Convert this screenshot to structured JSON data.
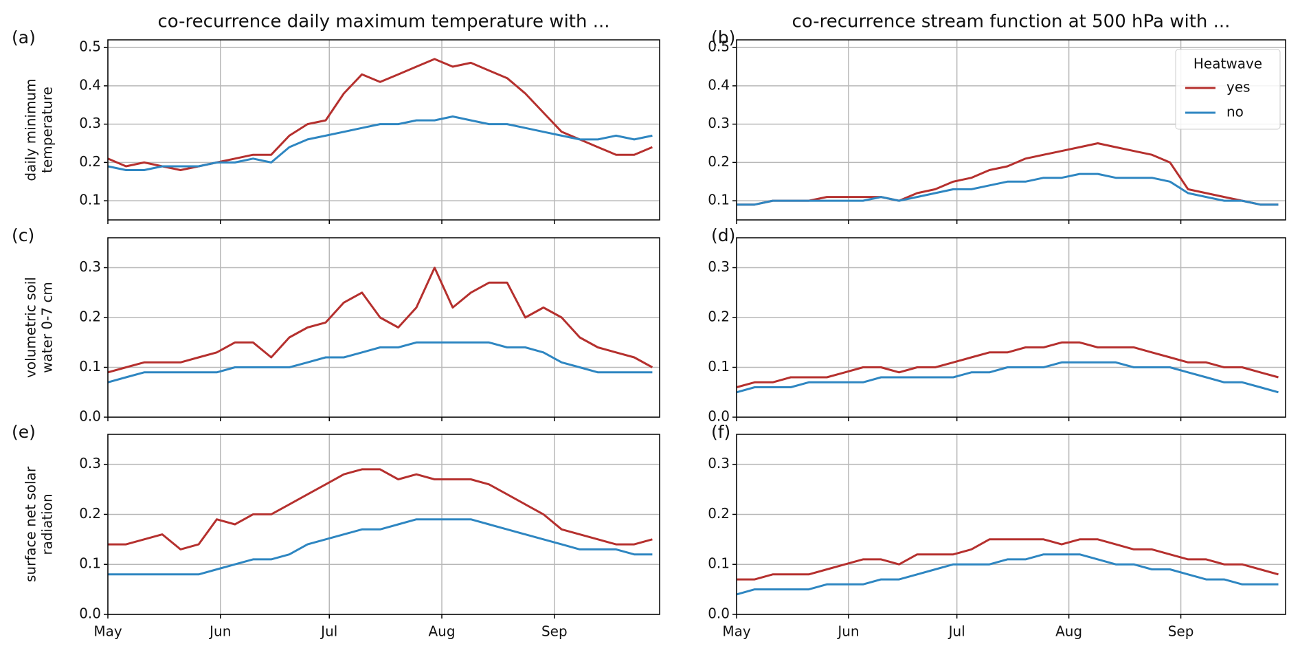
{
  "chart_data": [
    {
      "type": "line",
      "panel_label": "(a)",
      "title": "co-recurrence daily maximum temperature with ...",
      "ylabel": [
        "daily minimum",
        "temperature"
      ],
      "x": [
        0,
        5,
        10,
        15,
        20,
        25,
        30,
        35,
        40,
        45,
        50,
        55,
        60,
        65,
        70,
        75,
        80,
        85,
        90,
        95,
        100,
        105,
        110,
        115,
        120,
        125,
        130,
        135,
        140,
        145,
        150
      ],
      "xlim": [
        0,
        152
      ],
      "xticks": [
        0,
        31,
        61,
        92,
        123
      ],
      "ylim": [
        0.05,
        0.52
      ],
      "yticks": [
        0.1,
        0.2,
        0.3,
        0.4,
        0.5
      ],
      "grid": true,
      "series": [
        {
          "color": "#b5302e",
          "values": [
            0.21,
            0.19,
            0.2,
            0.19,
            0.18,
            0.19,
            0.2,
            0.21,
            0.22,
            0.22,
            0.27,
            0.3,
            0.31,
            0.38,
            0.43,
            0.41,
            0.43,
            0.45,
            0.47,
            0.45,
            0.46,
            0.44,
            0.42,
            0.38,
            0.33,
            0.28,
            0.26,
            0.24,
            0.22,
            0.22,
            0.24
          ]
        },
        {
          "color": "#2e86c1",
          "values": [
            0.19,
            0.18,
            0.18,
            0.19,
            0.19,
            0.19,
            0.2,
            0.2,
            0.21,
            0.2,
            0.24,
            0.26,
            0.27,
            0.28,
            0.29,
            0.3,
            0.3,
            0.31,
            0.31,
            0.32,
            0.31,
            0.3,
            0.3,
            0.29,
            0.28,
            0.27,
            0.26,
            0.26,
            0.27,
            0.26,
            0.27
          ]
        }
      ]
    },
    {
      "type": "line",
      "panel_label": "(b)",
      "title": "co-recurrence stream function at 500 hPa with ...",
      "legend_title": "Heatwave",
      "legend": "upper right",
      "x": [
        0,
        5,
        10,
        15,
        20,
        25,
        30,
        35,
        40,
        45,
        50,
        55,
        60,
        65,
        70,
        75,
        80,
        85,
        90,
        95,
        100,
        105,
        110,
        115,
        120,
        125,
        130,
        135,
        140,
        145,
        150
      ],
      "xlim": [
        0,
        152
      ],
      "xticks": [
        0,
        31,
        61,
        92,
        123
      ],
      "ylim": [
        0.05,
        0.52
      ],
      "yticks": [
        0.1,
        0.2,
        0.3,
        0.4,
        0.5
      ],
      "grid": true,
      "series": [
        {
          "name": "yes",
          "color": "#b5302e",
          "values": [
            0.09,
            0.09,
            0.1,
            0.1,
            0.1,
            0.11,
            0.11,
            0.11,
            0.11,
            0.1,
            0.12,
            0.13,
            0.15,
            0.16,
            0.18,
            0.19,
            0.21,
            0.22,
            0.23,
            0.24,
            0.25,
            0.24,
            0.23,
            0.22,
            0.2,
            0.13,
            0.12,
            0.11,
            0.1,
            0.09,
            0.09
          ]
        },
        {
          "name": "no",
          "color": "#2e86c1",
          "values": [
            0.09,
            0.09,
            0.1,
            0.1,
            0.1,
            0.1,
            0.1,
            0.1,
            0.11,
            0.1,
            0.11,
            0.12,
            0.13,
            0.13,
            0.14,
            0.15,
            0.15,
            0.16,
            0.16,
            0.17,
            0.17,
            0.16,
            0.16,
            0.16,
            0.15,
            0.12,
            0.11,
            0.1,
            0.1,
            0.09,
            0.09
          ]
        }
      ]
    },
    {
      "type": "line",
      "panel_label": "(c)",
      "ylabel": [
        "volumetric soil",
        "water 0-7 cm"
      ],
      "x": [
        0,
        5,
        10,
        15,
        20,
        25,
        30,
        35,
        40,
        45,
        50,
        55,
        60,
        65,
        70,
        75,
        80,
        85,
        90,
        95,
        100,
        105,
        110,
        115,
        120,
        125,
        130,
        135,
        140,
        145,
        150
      ],
      "xlim": [
        0,
        152
      ],
      "xticks": [
        0,
        31,
        61,
        92,
        123
      ],
      "ylim": [
        0,
        0.36
      ],
      "yticks": [
        {
          "value": 0,
          "label": "0.0"
        },
        0.1,
        0.2,
        0.3
      ],
      "grid": true,
      "series": [
        {
          "color": "#b5302e",
          "values": [
            0.09,
            0.1,
            0.11,
            0.11,
            0.11,
            0.12,
            0.13,
            0.15,
            0.15,
            0.12,
            0.16,
            0.18,
            0.19,
            0.23,
            0.25,
            0.2,
            0.18,
            0.22,
            0.3,
            0.22,
            0.25,
            0.27,
            0.27,
            0.2,
            0.22,
            0.2,
            0.16,
            0.14,
            0.13,
            0.12,
            0.1
          ]
        },
        {
          "color": "#2e86c1",
          "values": [
            0.07,
            0.08,
            0.09,
            0.09,
            0.09,
            0.09,
            0.09,
            0.1,
            0.1,
            0.1,
            0.1,
            0.11,
            0.12,
            0.12,
            0.13,
            0.14,
            0.14,
            0.15,
            0.15,
            0.15,
            0.15,
            0.15,
            0.14,
            0.14,
            0.13,
            0.11,
            0.1,
            0.09,
            0.09,
            0.09,
            0.09
          ]
        }
      ]
    },
    {
      "type": "line",
      "panel_label": "(d)",
      "x": [
        0,
        5,
        10,
        15,
        20,
        25,
        30,
        35,
        40,
        45,
        50,
        55,
        60,
        65,
        70,
        75,
        80,
        85,
        90,
        95,
        100,
        105,
        110,
        115,
        120,
        125,
        130,
        135,
        140,
        145,
        150
      ],
      "xlim": [
        0,
        152
      ],
      "xticks": [
        0,
        31,
        61,
        92,
        123
      ],
      "ylim": [
        0,
        0.36
      ],
      "yticks": [
        {
          "value": 0,
          "label": "0.0"
        },
        0.1,
        0.2,
        0.3
      ],
      "grid": true,
      "series": [
        {
          "color": "#b5302e",
          "values": [
            0.06,
            0.07,
            0.07,
            0.08,
            0.08,
            0.08,
            0.09,
            0.1,
            0.1,
            0.09,
            0.1,
            0.1,
            0.11,
            0.12,
            0.13,
            0.13,
            0.14,
            0.14,
            0.15,
            0.15,
            0.14,
            0.14,
            0.14,
            0.13,
            0.12,
            0.11,
            0.11,
            0.1,
            0.1,
            0.09,
            0.08
          ]
        },
        {
          "color": "#2e86c1",
          "values": [
            0.05,
            0.06,
            0.06,
            0.06,
            0.07,
            0.07,
            0.07,
            0.07,
            0.08,
            0.08,
            0.08,
            0.08,
            0.08,
            0.09,
            0.09,
            0.1,
            0.1,
            0.1,
            0.11,
            0.11,
            0.11,
            0.11,
            0.1,
            0.1,
            0.1,
            0.09,
            0.08,
            0.07,
            0.07,
            0.06,
            0.05
          ]
        }
      ]
    },
    {
      "type": "line",
      "panel_label": "(e)",
      "ylabel": [
        "surface net solar",
        "radiation"
      ],
      "x": [
        0,
        5,
        10,
        15,
        20,
        25,
        30,
        35,
        40,
        45,
        50,
        55,
        60,
        65,
        70,
        75,
        80,
        85,
        90,
        95,
        100,
        105,
        110,
        115,
        120,
        125,
        130,
        135,
        140,
        145,
        150
      ],
      "xlim": [
        0,
        152
      ],
      "xticks": [
        {
          "value": 0,
          "label": "May"
        },
        {
          "value": 31,
          "label": "Jun"
        },
        {
          "value": 61,
          "label": "Jul"
        },
        {
          "value": 92,
          "label": "Aug"
        },
        {
          "value": 123,
          "label": "Sep"
        }
      ],
      "ylim": [
        0,
        0.36
      ],
      "yticks": [
        {
          "value": 0,
          "label": "0.0"
        },
        0.1,
        0.2,
        0.3
      ],
      "grid": true,
      "series": [
        {
          "color": "#b5302e",
          "values": [
            0.14,
            0.14,
            0.15,
            0.16,
            0.13,
            0.14,
            0.19,
            0.18,
            0.2,
            0.2,
            0.22,
            0.24,
            0.26,
            0.28,
            0.29,
            0.29,
            0.27,
            0.28,
            0.27,
            0.27,
            0.27,
            0.26,
            0.24,
            0.22,
            0.2,
            0.17,
            0.16,
            0.15,
            0.14,
            0.14,
            0.15
          ]
        },
        {
          "color": "#2e86c1",
          "values": [
            0.08,
            0.08,
            0.08,
            0.08,
            0.08,
            0.08,
            0.09,
            0.1,
            0.11,
            0.11,
            0.12,
            0.14,
            0.15,
            0.16,
            0.17,
            0.17,
            0.18,
            0.19,
            0.19,
            0.19,
            0.19,
            0.18,
            0.17,
            0.16,
            0.15,
            0.14,
            0.13,
            0.13,
            0.13,
            0.12,
            0.12
          ]
        }
      ]
    },
    {
      "type": "line",
      "panel_label": "(f)",
      "x": [
        0,
        5,
        10,
        15,
        20,
        25,
        30,
        35,
        40,
        45,
        50,
        55,
        60,
        65,
        70,
        75,
        80,
        85,
        90,
        95,
        100,
        105,
        110,
        115,
        120,
        125,
        130,
        135,
        140,
        145,
        150
      ],
      "xlim": [
        0,
        152
      ],
      "xticks": [
        {
          "value": 0,
          "label": "May"
        },
        {
          "value": 31,
          "label": "Jun"
        },
        {
          "value": 61,
          "label": "Jul"
        },
        {
          "value": 92,
          "label": "Aug"
        },
        {
          "value": 123,
          "label": "Sep"
        }
      ],
      "ylim": [
        0,
        0.36
      ],
      "yticks": [
        {
          "value": 0,
          "label": "0.0"
        },
        0.1,
        0.2,
        0.3
      ],
      "grid": true,
      "series": [
        {
          "color": "#b5302e",
          "values": [
            0.07,
            0.07,
            0.08,
            0.08,
            0.08,
            0.09,
            0.1,
            0.11,
            0.11,
            0.1,
            0.12,
            0.12,
            0.12,
            0.13,
            0.15,
            0.15,
            0.15,
            0.15,
            0.14,
            0.15,
            0.15,
            0.14,
            0.13,
            0.13,
            0.12,
            0.11,
            0.11,
            0.1,
            0.1,
            0.09,
            0.08
          ]
        },
        {
          "color": "#2e86c1",
          "values": [
            0.04,
            0.05,
            0.05,
            0.05,
            0.05,
            0.06,
            0.06,
            0.06,
            0.07,
            0.07,
            0.08,
            0.09,
            0.1,
            0.1,
            0.1,
            0.11,
            0.11,
            0.12,
            0.12,
            0.12,
            0.11,
            0.1,
            0.1,
            0.09,
            0.09,
            0.08,
            0.07,
            0.07,
            0.06,
            0.06,
            0.06
          ]
        }
      ]
    }
  ]
}
